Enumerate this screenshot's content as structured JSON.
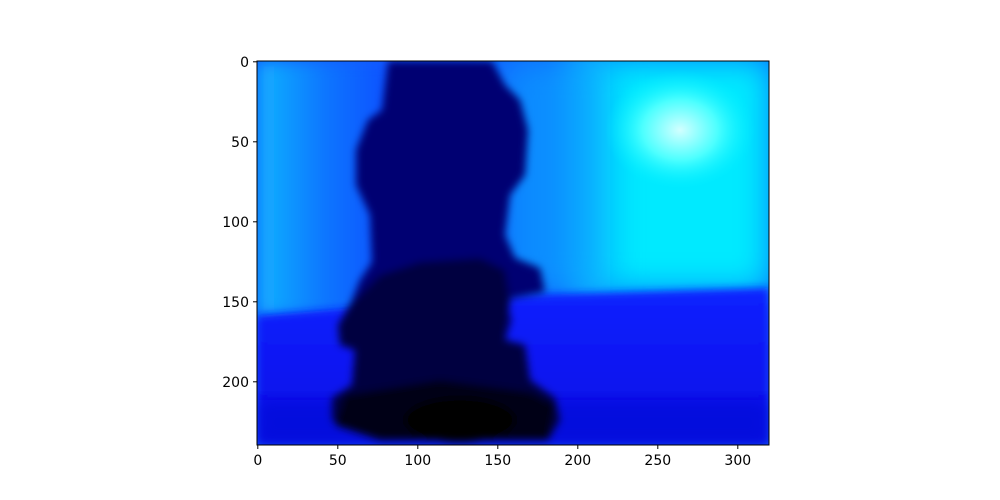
{
  "chart_data": {
    "type": "heatmap",
    "title": "",
    "xlabel": "",
    "ylabel": "",
    "image_shape": [
      240,
      320
    ],
    "xlim": [
      -0.5,
      319.5
    ],
    "ylim": [
      239.5,
      -0.5
    ],
    "y_axis_inverted": true,
    "x_ticks": [
      0,
      50,
      100,
      150,
      200,
      250,
      300
    ],
    "x_tick_labels": [
      "0",
      "50",
      "100",
      "150",
      "200",
      "250",
      "300"
    ],
    "y_ticks": [
      0,
      50,
      100,
      150,
      200
    ],
    "y_tick_labels": [
      "0",
      "50",
      "100",
      "150",
      "200"
    ],
    "colormap": [
      "#000000",
      "#000080",
      "#0000ff",
      "#00ffff",
      "#ffffff"
    ],
    "depiction": "depth map of a stacked object in the center (dark) against a lighter background; bright cyan region upper right",
    "regions": [
      {
        "name": "background-left",
        "color": "#1a8cff"
      },
      {
        "name": "background-upper-right",
        "color": "#00ffff"
      },
      {
        "name": "bright-spot",
        "color": "#c8ffff"
      },
      {
        "name": "floor",
        "color": "#0a14f0"
      },
      {
        "name": "object-top",
        "color": "#000080"
      },
      {
        "name": "object-middle",
        "color": "#000040"
      },
      {
        "name": "object-base",
        "color": "#000010"
      }
    ]
  }
}
